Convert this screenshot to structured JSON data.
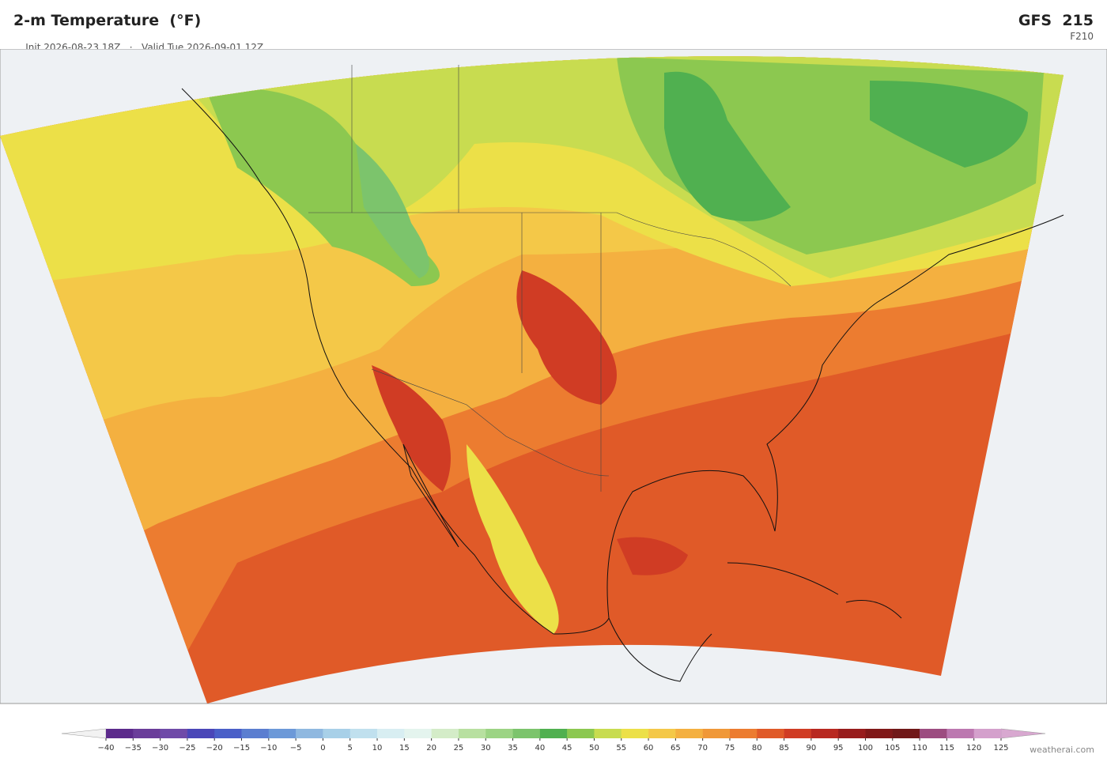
{
  "header": {
    "title": "2-m Temperature  (°F)",
    "init": "Init 2026-08-23 18Z",
    "separator": "·",
    "valid": "Valid Tue 2026-09-01 12Z",
    "model": "GFS  215",
    "forecast_hour": "F210"
  },
  "colorbar": {
    "ticks": [
      {
        "value": -40,
        "label": "−40"
      },
      {
        "value": -35,
        "label": "−35"
      },
      {
        "value": -30,
        "label": "−30"
      },
      {
        "value": -25,
        "label": "−25"
      },
      {
        "value": -20,
        "label": "−20"
      },
      {
        "value": -15,
        "label": "−15"
      },
      {
        "value": -10,
        "label": "−10"
      },
      {
        "value": -5,
        "label": "−5"
      },
      0,
      5,
      10,
      15,
      20,
      25,
      30,
      35,
      40,
      45,
      50,
      55,
      60,
      65,
      70,
      75,
      80,
      85,
      90,
      95,
      100,
      105,
      110,
      115,
      120,
      125
    ],
    "colors": [
      "#5c2a8c",
      "#6a3d9a",
      "#6f4aa8",
      "#4a46b8",
      "#4a5fc8",
      "#5b7ed0",
      "#6c99d8",
      "#8fb8e0",
      "#a8d0e8",
      "#c0e0ee",
      "#d8eef2",
      "#e4f4ee",
      "#d4ecc8",
      "#b8e0a0",
      "#9cd484",
      "#7cc46c",
      "#50b050",
      "#8cc850",
      "#c8dc50",
      "#ece048",
      "#f4c848",
      "#f4b040",
      "#f09838",
      "#ec7c30",
      "#e05a28",
      "#d03c24",
      "#b82820",
      "#981c1c",
      "#801818",
      "#701818",
      "#9c4c80",
      "#bc78b0",
      "#d4a0cc"
    ],
    "under_color": "#f2f2f2",
    "over_color": "#d8a8d0"
  },
  "footer": {
    "credit": "weatherai.com"
  }
}
